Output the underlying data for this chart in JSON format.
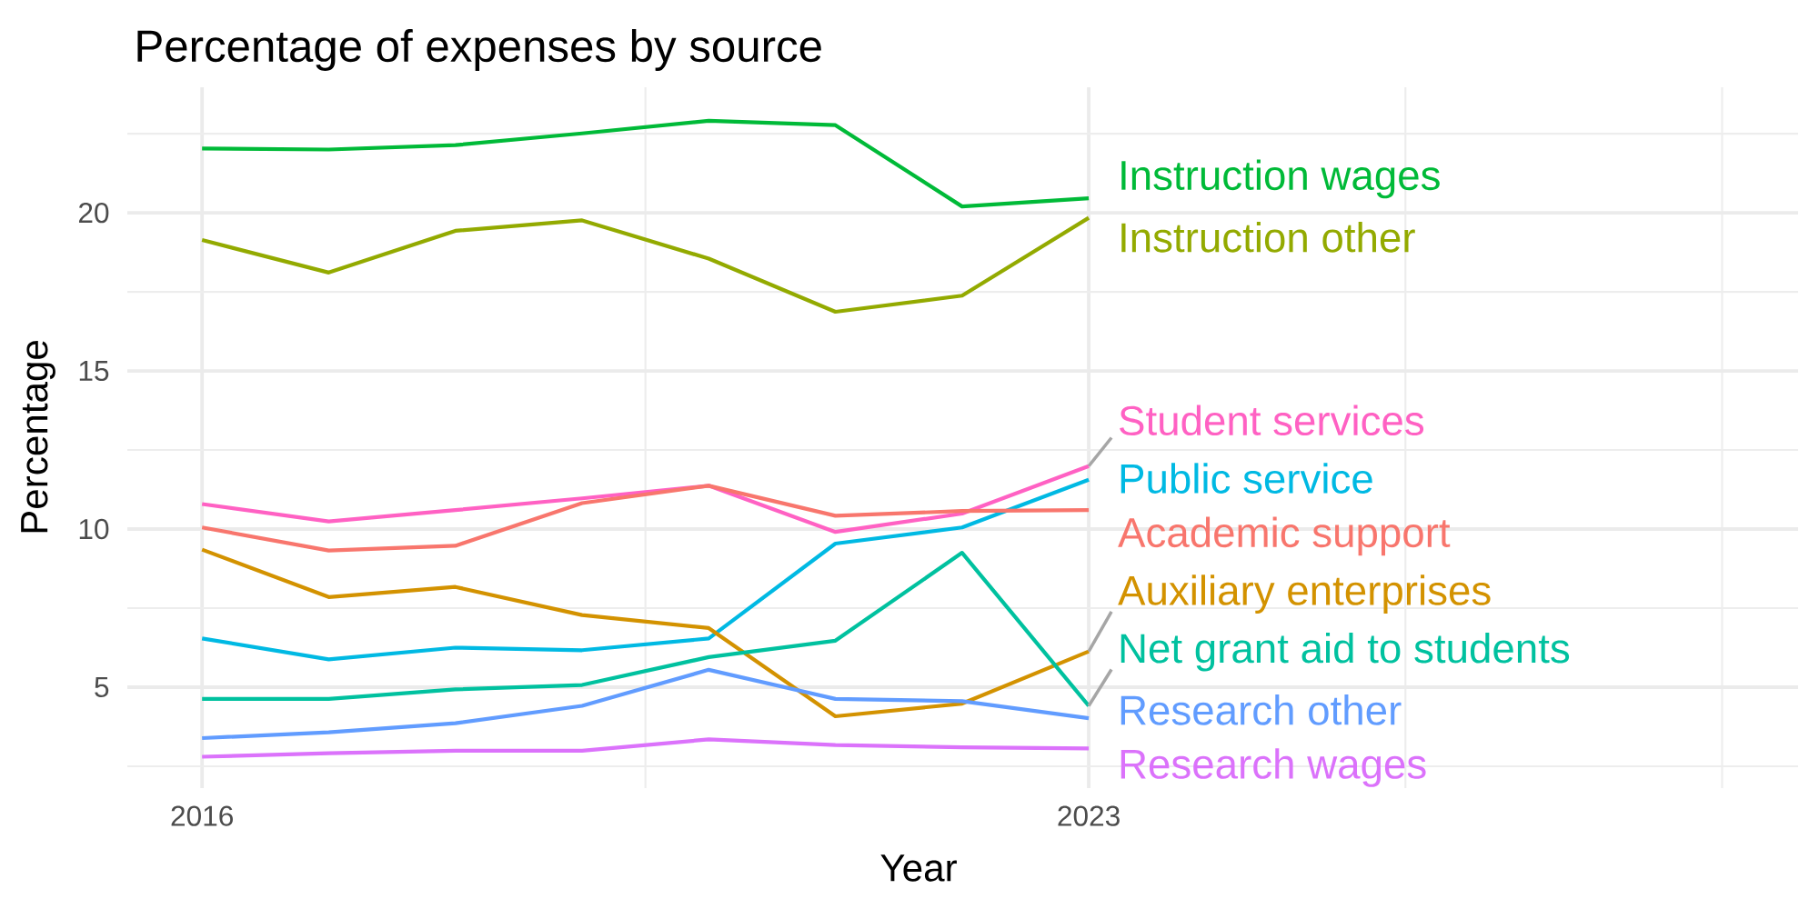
{
  "chart_data": {
    "type": "line",
    "title": "Percentage of expenses by source",
    "xlabel": "Year",
    "ylabel": "Percentage",
    "x": [
      2016,
      2017,
      2018,
      2019,
      2020,
      2021,
      2022,
      2023
    ],
    "xlim": [
      2015.41,
      2028.6
    ],
    "xticks": [
      2016,
      {
        "value": 2019.5,
        "label": null
      },
      2023,
      {
        "value": 2025.5,
        "label": null
      },
      {
        "value": 2028,
        "label": null
      }
    ],
    "ylim": [
      1.81,
      23.97
    ],
    "yticks": [
      {
        "value": 2.5,
        "label": null
      },
      5,
      {
        "value": 7.5,
        "label": null
      },
      10,
      {
        "value": 12.5,
        "label": null
      },
      15,
      {
        "value": 17.5,
        "label": null
      },
      20,
      {
        "value": 22.5,
        "label": null
      }
    ],
    "grid": true,
    "series": [
      {
        "name": "Instruction wages",
        "color": "#00ba38",
        "values": [
          22.03,
          22.0,
          22.14,
          22.51,
          22.91,
          22.77,
          20.2,
          20.46
        ]
      },
      {
        "name": "Instruction other",
        "color": "#93aa00",
        "values": [
          19.14,
          18.11,
          19.43,
          19.76,
          18.55,
          16.87,
          17.38,
          19.84
        ]
      },
      {
        "name": "Student services",
        "color": "#ff61c3",
        "values": [
          10.79,
          10.24,
          10.6,
          10.97,
          11.37,
          9.91,
          10.49,
          11.99
        ]
      },
      {
        "name": "Public service",
        "color": "#00b9e3",
        "values": [
          6.54,
          5.88,
          6.25,
          6.17,
          6.54,
          9.54,
          10.05,
          11.56
        ]
      },
      {
        "name": "Academic support",
        "color": "#f8766d",
        "values": [
          10.05,
          9.32,
          9.47,
          10.82,
          11.37,
          10.42,
          10.57,
          10.6
        ]
      },
      {
        "name": "Auxiliary enterprises",
        "color": "#d39200",
        "values": [
          9.35,
          7.85,
          8.17,
          7.28,
          6.87,
          4.08,
          4.48,
          6.13
        ]
      },
      {
        "name": "Net grant aid to students",
        "color": "#00c19f",
        "values": [
          4.63,
          4.63,
          4.93,
          5.07,
          5.95,
          6.47,
          9.25,
          4.41
        ]
      },
      {
        "name": "Research other",
        "color": "#619cff",
        "values": [
          3.39,
          3.57,
          3.86,
          4.41,
          5.55,
          4.63,
          4.56,
          4.02
        ]
      },
      {
        "name": "Research wages",
        "color": "#db72fb",
        "values": [
          2.8,
          2.91,
          2.99,
          2.99,
          3.35,
          3.17,
          3.1,
          3.06
        ]
      }
    ]
  }
}
